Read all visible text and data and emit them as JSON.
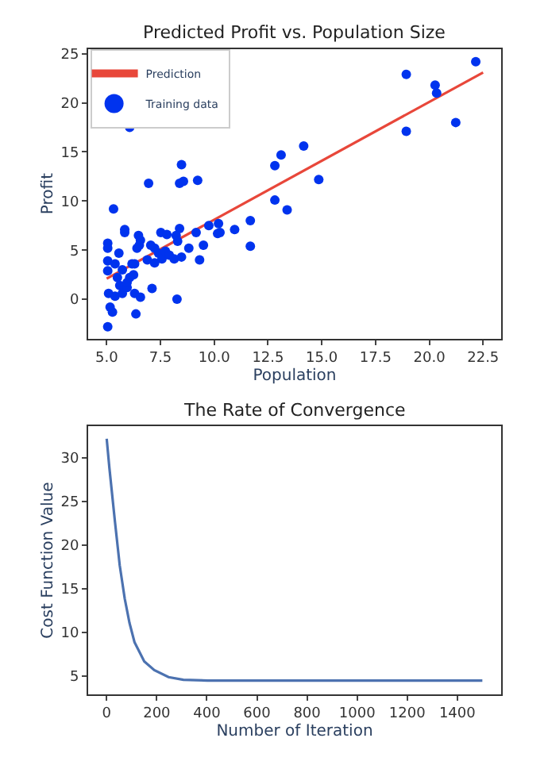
{
  "chart_data": [
    {
      "type": "scatter",
      "title": "Predicted Profit vs. Population Size",
      "xlabel": "Population",
      "ylabel": "Profit",
      "xlim": [
        4.14,
        23.34
      ],
      "xticks": [
        {
          "value": 5,
          "label": "5.0"
        },
        {
          "value": 7.5,
          "label": "7.5"
        },
        {
          "value": 10,
          "label": "10.0"
        },
        {
          "value": 12.5,
          "label": "12.5"
        },
        {
          "value": 15,
          "label": "15.0"
        },
        {
          "value": 17.5,
          "label": "17.5"
        },
        {
          "value": 20,
          "label": "20.0"
        },
        {
          "value": 22.5,
          "label": "22.5"
        }
      ],
      "ylim": [
        -4.0,
        25.5
      ],
      "yticks": [
        0,
        5,
        10,
        15,
        20,
        25
      ],
      "grid": false,
      "legend": "top left",
      "series": [
        {
          "name": "Prediction",
          "type": "line",
          "color": "#e8473a",
          "marker": "none",
          "x": [
            5.0,
            22.5
          ],
          "values": [
            2.1,
            23.1
          ]
        },
        {
          "name": "Training data",
          "type": "scatter",
          "color": "#0033ee",
          "marker": "circle",
          "x": [
            5.05,
            5.32,
            6.07,
            6.95,
            8.48,
            8.39,
            8.57,
            9.23,
            8.27,
            6.36,
            7.11,
            5.84,
            5.84,
            6.48,
            6.57,
            7.52,
            7.8,
            8.39,
            8.23,
            9.16,
            9.75,
            10.2,
            10.16,
            10.27,
            10.95,
            11.68,
            11.68,
            12.82,
            12.82,
            13.11,
            13.39,
            14.16,
            14.86,
            18.93,
            18.93,
            20.27,
            20.34,
            21.23,
            22.16,
            5.05,
            5.05,
            5.05,
            5.05,
            5.09,
            5.16,
            5.27,
            5.57,
            5.39,
            5.5,
            5.73,
            5.61,
            5.39,
            5.73,
            5.95,
            6.07,
            6.25,
            6.18,
            6.3,
            6.41,
            6.52,
            6.57,
            6.3,
            5.95,
            6.89,
            7.23,
            7.41,
            7.57,
            7.73,
            7.91,
            8.14,
            8.48,
            8.82,
            9.32,
            9.5,
            8.3,
            7.23,
            7.05
          ],
          "values": [
            -2.8,
            9.2,
            17.5,
            11.8,
            13.7,
            11.8,
            12.0,
            12.1,
            0.0,
            -1.5,
            1.1,
            7.1,
            6.8,
            6.5,
            6.0,
            6.8,
            6.6,
            7.2,
            6.5,
            6.8,
            7.5,
            7.7,
            6.7,
            6.8,
            7.1,
            8.0,
            5.4,
            13.6,
            10.1,
            14.7,
            9.1,
            15.6,
            12.2,
            22.9,
            17.1,
            21.8,
            21.0,
            18.0,
            24.2,
            5.7,
            5.2,
            3.9,
            2.9,
            0.6,
            -0.8,
            -1.3,
            4.7,
            3.6,
            2.2,
            3.0,
            1.4,
            0.3,
            0.6,
            1.2,
            2.2,
            2.5,
            3.6,
            0.6,
            5.2,
            5.5,
            0.2,
            3.6,
            1.7,
            4.0,
            3.7,
            4.7,
            4.1,
            4.9,
            4.5,
            4.1,
            4.3,
            5.2,
            4.0,
            5.5,
            5.9,
            5.2,
            5.5
          ]
        }
      ]
    },
    {
      "type": "line",
      "title": "The Rate of Convergence",
      "xlabel": "Number of Iteration",
      "ylabel": "Cost Function Value",
      "xlim": [
        -74,
        1575
      ],
      "xticks": [
        0,
        200,
        400,
        600,
        800,
        1000,
        1200,
        1400
      ],
      "ylim": [
        2.95,
        33.6
      ],
      "yticks": [
        5,
        10,
        15,
        20,
        25,
        30
      ],
      "grid": false,
      "legend": false,
      "series": [
        {
          "color": "#4c72b0",
          "marker": "none",
          "x": [
            0,
            11,
            33,
            52,
            72,
            91,
            111,
            150,
            190,
            247,
            306,
            404,
            501,
            600,
            800,
            1000,
            1200,
            1500
          ],
          "values": [
            32.2,
            28.8,
            22.7,
            17.7,
            13.9,
            11.1,
            8.9,
            6.7,
            5.7,
            4.9,
            4.6,
            4.5,
            4.5,
            4.5,
            4.5,
            4.5,
            4.5,
            4.5
          ]
        }
      ]
    }
  ]
}
